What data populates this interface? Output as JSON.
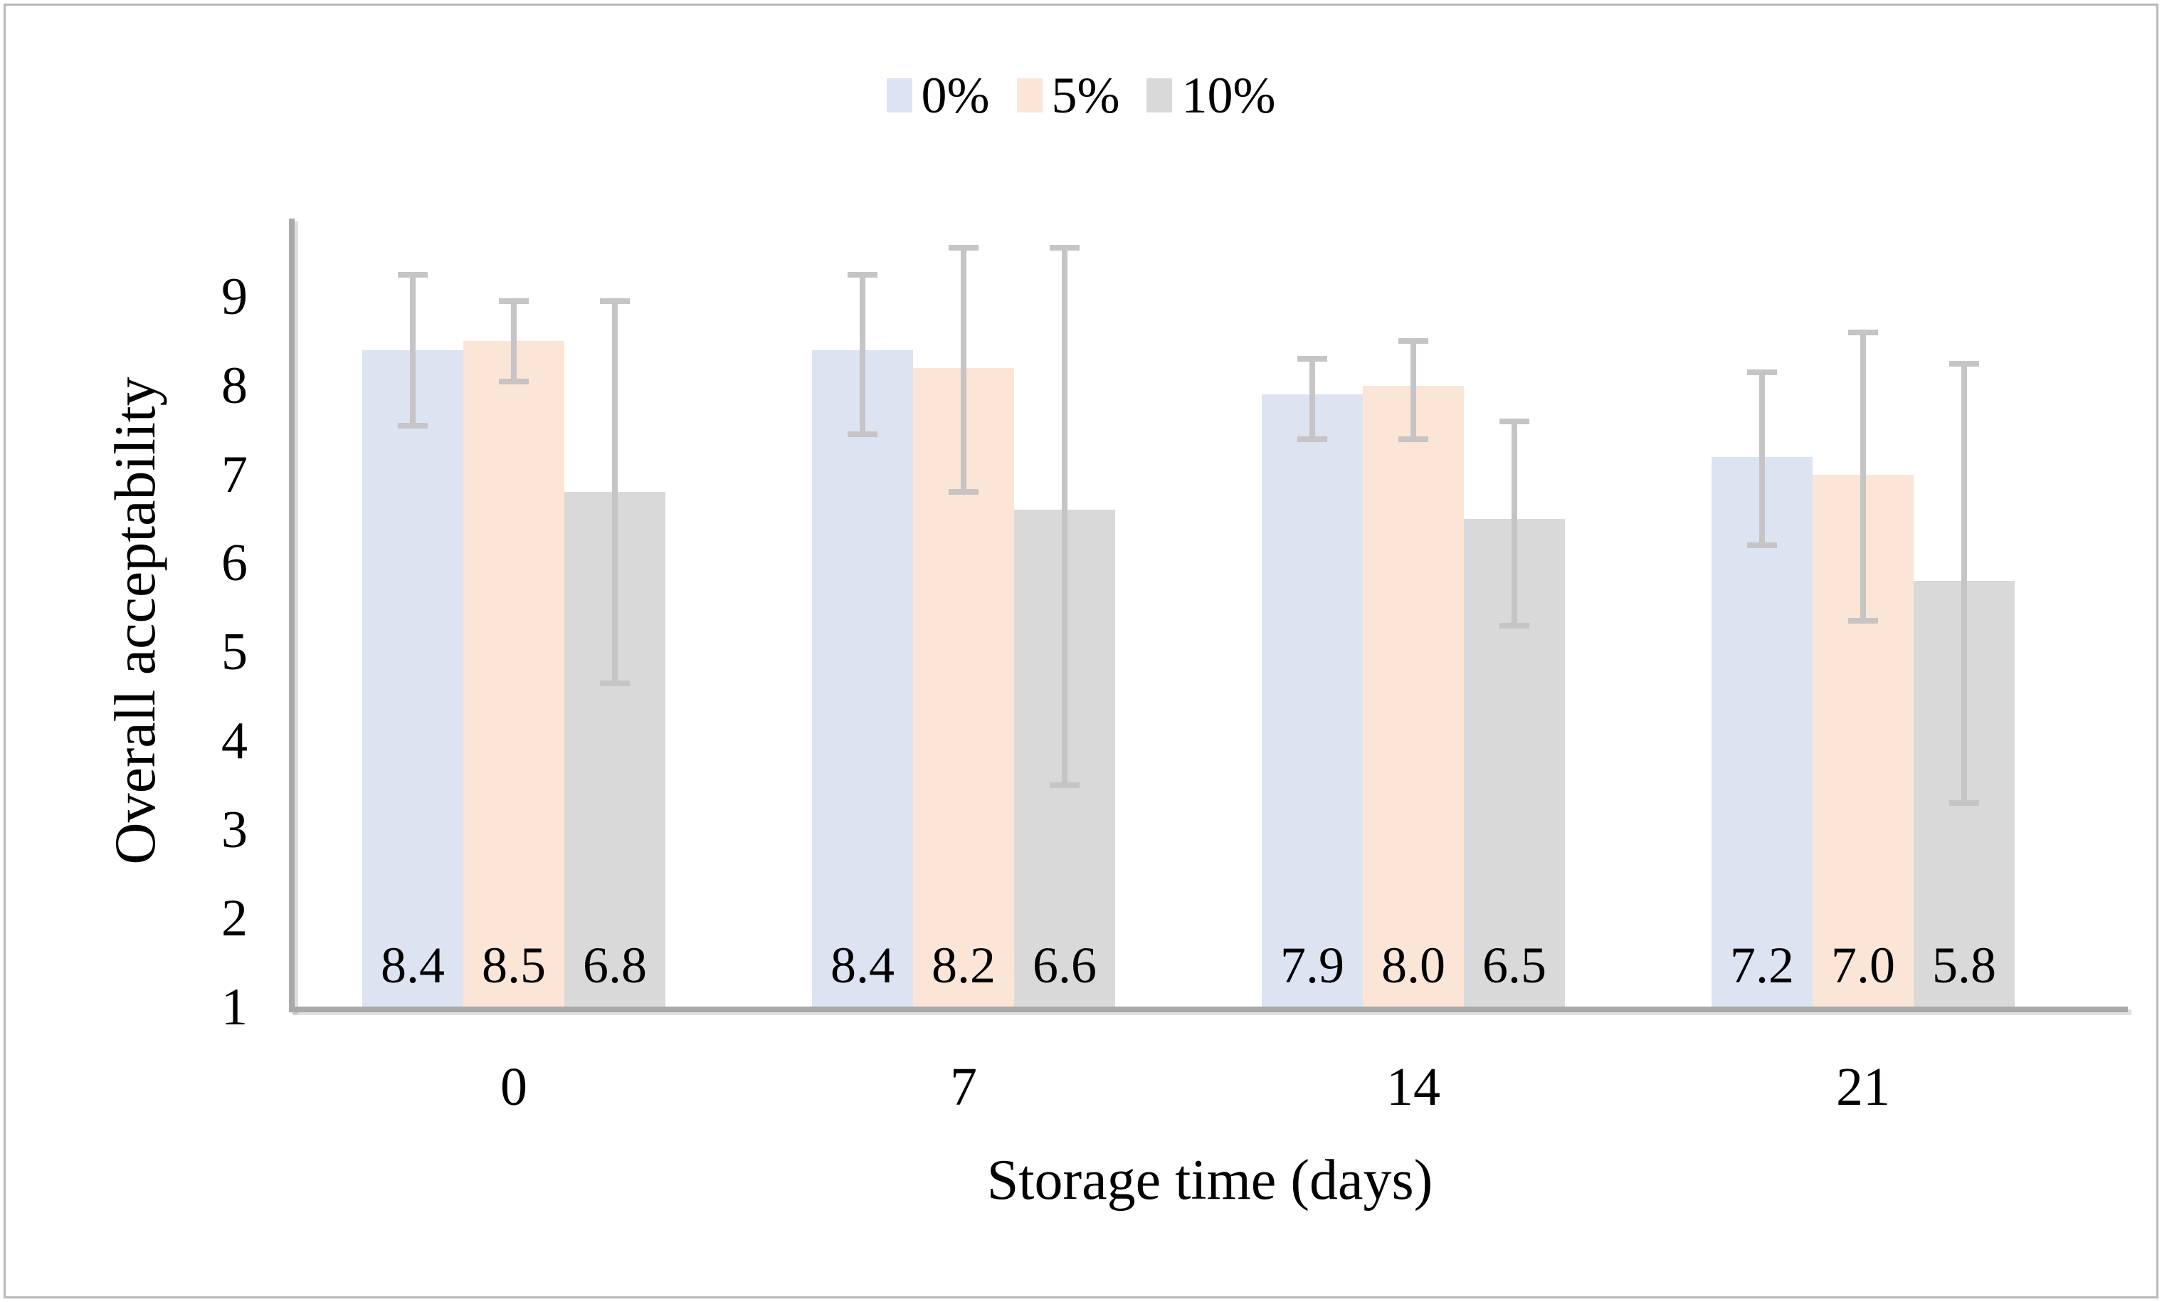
{
  "figure": {
    "background": "#ffffff",
    "border_color": "#b9b9b9"
  },
  "chart_data": {
    "type": "bar",
    "title": "",
    "xlabel": "Storage time (days)",
    "ylabel": "Overall acceptability",
    "categories": [
      "0",
      "7",
      "14",
      "21"
    ],
    "series": [
      {
        "name": "0%",
        "color": "#dce4f2",
        "values": [
          8.4,
          8.4,
          7.9,
          7.2
        ],
        "labels": [
          "8.4",
          "8.4",
          "7.9",
          "7.2"
        ],
        "error_upper": [
          9.25,
          9.25,
          8.3,
          8.15
        ],
        "error_lower": [
          7.55,
          7.45,
          7.4,
          6.2
        ]
      },
      {
        "name": "5%",
        "color": "#fbe5d7",
        "values": [
          8.5,
          8.2,
          8.0,
          7.0
        ],
        "labels": [
          "8.5",
          "8.2",
          "8.0",
          "7.0"
        ],
        "error_upper": [
          8.95,
          9.55,
          8.5,
          8.6
        ],
        "error_lower": [
          8.05,
          6.8,
          7.4,
          5.35
        ]
      },
      {
        "name": "10%",
        "color": "#d9d9d9",
        "values": [
          6.8,
          6.6,
          6.5,
          5.8
        ],
        "labels": [
          "6.8",
          "6.6",
          "6.5",
          "5.8"
        ],
        "error_upper": [
          8.95,
          9.55,
          7.6,
          8.25
        ],
        "error_lower": [
          4.65,
          3.5,
          5.3,
          3.3
        ]
      }
    ],
    "yaxis": {
      "min": 1,
      "max": 9.9,
      "ticks": [
        "1",
        "2",
        "3",
        "4",
        "5",
        "6",
        "7",
        "8",
        "9"
      ]
    },
    "legend_position": "top-center",
    "grid": false,
    "error_bar_color": "#c6c4c5",
    "axis_color": "#a9a9a9",
    "text_color": "#000000"
  }
}
